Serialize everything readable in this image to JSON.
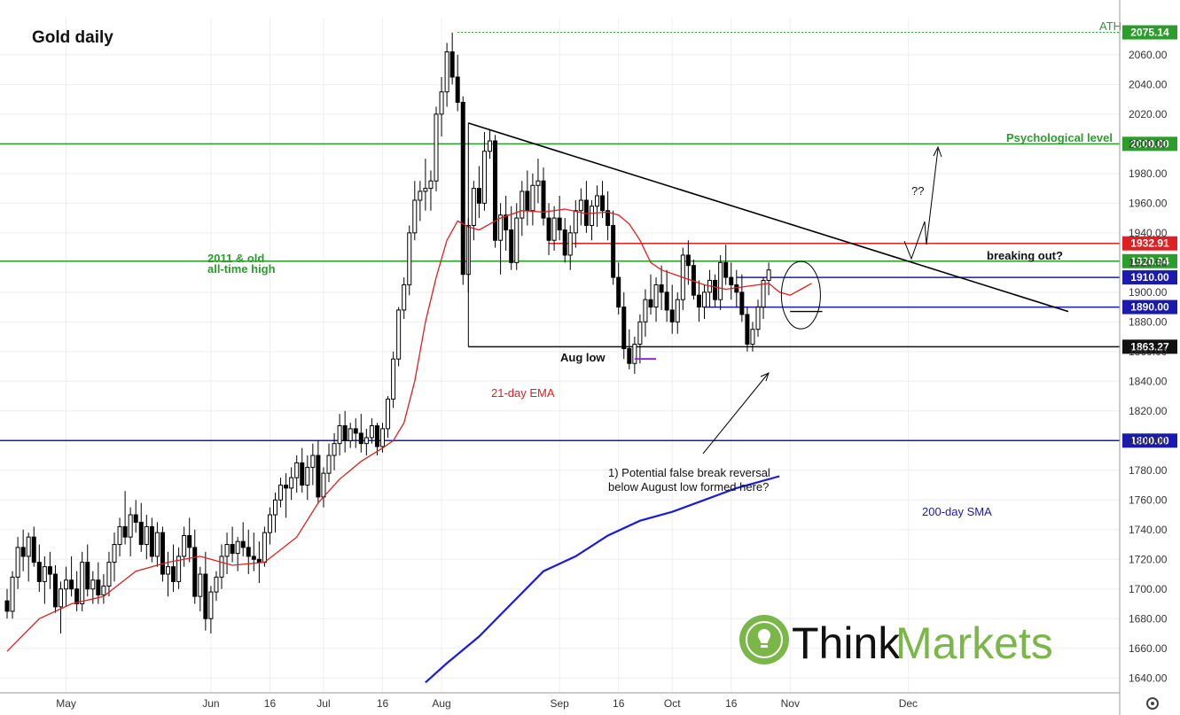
{
  "chart_data": {
    "type": "candlestick",
    "title": "Gold daily",
    "ylim": [
      1630,
      2085
    ],
    "y_ticks": [
      1640,
      1660,
      1680,
      1700,
      1720,
      1740,
      1760,
      1780,
      1800,
      1820,
      1840,
      1860,
      1880,
      1900,
      1920,
      1940,
      1960,
      1980,
      2000,
      2020,
      2040,
      2060
    ],
    "x_ticks": [
      {
        "label": "May",
        "i": 11
      },
      {
        "label": "Jun",
        "i": 38
      },
      {
        "label": "16",
        "i": 49
      },
      {
        "label": "Jul",
        "i": 59
      },
      {
        "label": "16",
        "i": 70
      },
      {
        "label": "Aug",
        "i": 81
      },
      {
        "label": "Sep",
        "i": 103
      },
      {
        "label": "16",
        "i": 114
      },
      {
        "label": "Oct",
        "i": 124
      },
      {
        "label": "16",
        "i": 135
      },
      {
        "label": "Nov",
        "i": 146
      },
      {
        "label": "Dec",
        "i": 168
      }
    ],
    "ohlc": [
      [
        1692,
        1700,
        1680,
        1685
      ],
      [
        1685,
        1712,
        1680,
        1708
      ],
      [
        1708,
        1735,
        1700,
        1728
      ],
      [
        1728,
        1740,
        1712,
        1722
      ],
      [
        1722,
        1738,
        1705,
        1735
      ],
      [
        1735,
        1742,
        1715,
        1718
      ],
      [
        1718,
        1730,
        1698,
        1705
      ],
      [
        1705,
        1722,
        1690,
        1715
      ],
      [
        1715,
        1725,
        1700,
        1710
      ],
      [
        1710,
        1716,
        1684,
        1688
      ],
      [
        1688,
        1705,
        1670,
        1700
      ],
      [
        1700,
        1715,
        1688,
        1706
      ],
      [
        1706,
        1722,
        1695,
        1700
      ],
      [
        1700,
        1712,
        1685,
        1690
      ],
      [
        1690,
        1725,
        1685,
        1718
      ],
      [
        1718,
        1730,
        1695,
        1700
      ],
      [
        1700,
        1712,
        1690,
        1706
      ],
      [
        1706,
        1718,
        1690,
        1696
      ],
      [
        1696,
        1710,
        1690,
        1702
      ],
      [
        1702,
        1725,
        1695,
        1718
      ],
      [
        1718,
        1738,
        1705,
        1730
      ],
      [
        1730,
        1748,
        1722,
        1742
      ],
      [
        1742,
        1766,
        1730,
        1735
      ],
      [
        1735,
        1755,
        1722,
        1750
      ],
      [
        1750,
        1760,
        1738,
        1745
      ],
      [
        1745,
        1758,
        1725,
        1730
      ],
      [
        1730,
        1750,
        1720,
        1742
      ],
      [
        1742,
        1748,
        1718,
        1722
      ],
      [
        1722,
        1745,
        1715,
        1738
      ],
      [
        1738,
        1742,
        1705,
        1710
      ],
      [
        1710,
        1725,
        1695,
        1715
      ],
      [
        1715,
        1730,
        1698,
        1705
      ],
      [
        1705,
        1728,
        1700,
        1722
      ],
      [
        1722,
        1742,
        1715,
        1736
      ],
      [
        1736,
        1748,
        1718,
        1728
      ],
      [
        1728,
        1740,
        1690,
        1695
      ],
      [
        1695,
        1715,
        1685,
        1710
      ],
      [
        1710,
        1725,
        1672,
        1680
      ],
      [
        1680,
        1702,
        1670,
        1698
      ],
      [
        1698,
        1712,
        1692,
        1708
      ],
      [
        1708,
        1730,
        1700,
        1722
      ],
      [
        1722,
        1738,
        1710,
        1730
      ],
      [
        1730,
        1742,
        1718,
        1724
      ],
      [
        1724,
        1735,
        1712,
        1732
      ],
      [
        1732,
        1745,
        1722,
        1728
      ],
      [
        1728,
        1740,
        1710,
        1722
      ],
      [
        1722,
        1738,
        1712,
        1720
      ],
      [
        1720,
        1732,
        1704,
        1718
      ],
      [
        1718,
        1742,
        1715,
        1738
      ],
      [
        1738,
        1755,
        1730,
        1750
      ],
      [
        1750,
        1765,
        1738,
        1760
      ],
      [
        1760,
        1775,
        1755,
        1770
      ],
      [
        1770,
        1778,
        1748,
        1768
      ],
      [
        1768,
        1782,
        1760,
        1775
      ],
      [
        1775,
        1790,
        1765,
        1785
      ],
      [
        1785,
        1795,
        1765,
        1770
      ],
      [
        1770,
        1790,
        1760,
        1782
      ],
      [
        1782,
        1798,
        1770,
        1790
      ],
      [
        1790,
        1800,
        1758,
        1762
      ],
      [
        1762,
        1782,
        1755,
        1778
      ],
      [
        1778,
        1798,
        1772,
        1790
      ],
      [
        1790,
        1805,
        1780,
        1798
      ],
      [
        1798,
        1818,
        1790,
        1810
      ],
      [
        1810,
        1820,
        1792,
        1800
      ],
      [
        1800,
        1812,
        1795,
        1808
      ],
      [
        1808,
        1815,
        1795,
        1805
      ],
      [
        1805,
        1818,
        1792,
        1798
      ],
      [
        1798,
        1808,
        1790,
        1802
      ],
      [
        1802,
        1815,
        1798,
        1810
      ],
      [
        1810,
        1812,
        1790,
        1796
      ],
      [
        1796,
        1812,
        1792,
        1808
      ],
      [
        1808,
        1830,
        1802,
        1828
      ],
      [
        1828,
        1860,
        1822,
        1855
      ],
      [
        1855,
        1890,
        1850,
        1888
      ],
      [
        1888,
        1910,
        1882,
        1905
      ],
      [
        1905,
        1945,
        1898,
        1940
      ],
      [
        1940,
        1975,
        1935,
        1962
      ],
      [
        1962,
        1975,
        1948,
        1968
      ],
      [
        1968,
        1990,
        1955,
        1970
      ],
      [
        1970,
        1982,
        1955,
        1975
      ],
      [
        1975,
        2025,
        1968,
        2020
      ],
      [
        2020,
        2045,
        2005,
        2035
      ],
      [
        2035,
        2068,
        2025,
        2062
      ],
      [
        2062,
        2075,
        2040,
        2045
      ],
      [
        2045,
        2060,
        2022,
        2028
      ],
      [
        2028,
        2032,
        1905,
        1912
      ],
      [
        1912,
        1950,
        1900,
        1945
      ],
      [
        1945,
        1975,
        1935,
        1970
      ],
      [
        1970,
        1985,
        1950,
        1960
      ],
      [
        1960,
        2008,
        1955,
        1995
      ],
      [
        1995,
        2010,
        1990,
        2002
      ],
      [
        2002,
        2006,
        1930,
        1935
      ],
      [
        1935,
        1960,
        1912,
        1952
      ],
      [
        1952,
        1965,
        1928,
        1942
      ],
      [
        1942,
        1958,
        1915,
        1920
      ],
      [
        1920,
        1960,
        1915,
        1950
      ],
      [
        1950,
        1975,
        1938,
        1968
      ],
      [
        1968,
        1982,
        1945,
        1955
      ],
      [
        1955,
        1980,
        1945,
        1972
      ],
      [
        1972,
        1990,
        1960,
        1975
      ],
      [
        1975,
        1984,
        1945,
        1950
      ],
      [
        1950,
        1960,
        1925,
        1935
      ],
      [
        1935,
        1958,
        1928,
        1950
      ],
      [
        1950,
        1965,
        1935,
        1942
      ],
      [
        1942,
        1950,
        1920,
        1925
      ],
      [
        1925,
        1945,
        1915,
        1940
      ],
      [
        1940,
        1962,
        1930,
        1955
      ],
      [
        1955,
        1970,
        1945,
        1962
      ],
      [
        1962,
        1975,
        1940,
        1945
      ],
      [
        1945,
        1962,
        1935,
        1958
      ],
      [
        1958,
        1972,
        1944,
        1965
      ],
      [
        1965,
        1975,
        1950,
        1955
      ],
      [
        1955,
        1968,
        1935,
        1945
      ],
      [
        1945,
        1955,
        1905,
        1910
      ],
      [
        1910,
        1920,
        1885,
        1890
      ],
      [
        1890,
        1900,
        1855,
        1862
      ],
      [
        1862,
        1875,
        1848,
        1852
      ],
      [
        1852,
        1870,
        1845,
        1865
      ],
      [
        1865,
        1885,
        1852,
        1880
      ],
      [
        1880,
        1902,
        1870,
        1895
      ],
      [
        1895,
        1912,
        1885,
        1890
      ],
      [
        1890,
        1910,
        1880,
        1905
      ],
      [
        1905,
        1918,
        1888,
        1900
      ],
      [
        1900,
        1915,
        1880,
        1888
      ],
      [
        1888,
        1905,
        1872,
        1880
      ],
      [
        1880,
        1900,
        1872,
        1895
      ],
      [
        1895,
        1930,
        1888,
        1925
      ],
      [
        1925,
        1935,
        1905,
        1918
      ],
      [
        1918,
        1922,
        1895,
        1898
      ],
      [
        1898,
        1908,
        1880,
        1890
      ],
      [
        1890,
        1905,
        1882,
        1900
      ],
      [
        1900,
        1915,
        1890,
        1908
      ],
      [
        1908,
        1912,
        1890,
        1895
      ],
      [
        1895,
        1925,
        1888,
        1920
      ],
      [
        1920,
        1932,
        1905,
        1910
      ],
      [
        1910,
        1920,
        1895,
        1905
      ],
      [
        1905,
        1915,
        1890,
        1900
      ],
      [
        1900,
        1912,
        1880,
        1885
      ],
      [
        1885,
        1890,
        1860,
        1865
      ],
      [
        1865,
        1880,
        1860,
        1875
      ],
      [
        1875,
        1895,
        1870,
        1890
      ],
      [
        1890,
        1910,
        1882,
        1908
      ],
      [
        1908,
        1920,
        1898,
        1915
      ]
    ],
    "ema21": [
      [
        0,
        1658
      ],
      [
        6,
        1680
      ],
      [
        12,
        1690
      ],
      [
        18,
        1695
      ],
      [
        24,
        1712
      ],
      [
        30,
        1718
      ],
      [
        36,
        1722
      ],
      [
        42,
        1716
      ],
      [
        48,
        1718
      ],
      [
        54,
        1735
      ],
      [
        58,
        1758
      ],
      [
        62,
        1774
      ],
      [
        66,
        1786
      ],
      [
        70,
        1795
      ],
      [
        72,
        1800
      ],
      [
        74,
        1812
      ],
      [
        76,
        1840
      ],
      [
        78,
        1880
      ],
      [
        80,
        1910
      ],
      [
        82,
        1935
      ],
      [
        84,
        1948
      ],
      [
        86,
        1944
      ],
      [
        88,
        1942
      ],
      [
        92,
        1950
      ],
      [
        96,
        1955
      ],
      [
        100,
        1954
      ],
      [
        104,
        1956
      ],
      [
        108,
        1953
      ],
      [
        112,
        1954
      ],
      [
        114,
        1952
      ],
      [
        116,
        1946
      ],
      [
        118,
        1935
      ],
      [
        120,
        1920
      ],
      [
        122,
        1915
      ],
      [
        126,
        1910
      ],
      [
        130,
        1905
      ],
      [
        134,
        1902
      ],
      [
        138,
        1904
      ],
      [
        142,
        1906
      ],
      [
        144,
        1900
      ],
      [
        146,
        1898
      ],
      [
        148,
        1902
      ],
      [
        150,
        1906
      ]
    ],
    "sma200": [
      [
        78,
        1637
      ],
      [
        82,
        1650
      ],
      [
        88,
        1668
      ],
      [
        94,
        1690
      ],
      [
        100,
        1712
      ],
      [
        106,
        1722
      ],
      [
        112,
        1736
      ],
      [
        118,
        1746
      ],
      [
        124,
        1752
      ],
      [
        130,
        1760
      ],
      [
        136,
        1768
      ],
      [
        144,
        1776
      ]
    ],
    "levels": [
      {
        "price": 2075.14,
        "label": "2075.14",
        "color": "#2a9d2a",
        "style": "dotted",
        "note": "ATH"
      },
      {
        "price": 2000.0,
        "label": "2000.00",
        "color": "#2a9d2a",
        "style": "solid",
        "note": "Psychological level"
      },
      {
        "price": 1932.91,
        "label": "1932.91",
        "color": "#e02020",
        "style": "solid",
        "note": ""
      },
      {
        "price": 1920.94,
        "label": "1920.94",
        "color": "#2a9d2a",
        "style": "solid",
        "note": "2011 & old all-time high"
      },
      {
        "price": 1910.0,
        "label": "1910.00",
        "color": "#1a1ab0",
        "style": "solid",
        "note": ""
      },
      {
        "price": 1890.0,
        "label": "1890.00",
        "color": "#1a1ab0",
        "style": "solid",
        "note": ""
      },
      {
        "price": 1863.27,
        "label": "1863.27",
        "color": "#111111",
        "style": "solid",
        "note": "Aug low"
      },
      {
        "price": 1800.0,
        "label": "1800.00",
        "color": "#1a1ab0",
        "style": "solid",
        "note": ""
      }
    ],
    "annotations": {
      "ath": "ATH",
      "psych": "Psychological level",
      "old_high_1": "2011 & old",
      "old_high_2": "all-time high",
      "aug_low": "Aug low",
      "ema_label": "21-day EMA",
      "sma_label": "200-day SMA",
      "breaking": "breaking out?",
      "question": "??",
      "reversal_1": "1) Potential false break reversal",
      "reversal_2": "below August low formed here?"
    },
    "logo": "ThinkMarkets"
  },
  "colors": {
    "up": "#ffffff",
    "down": "#000000",
    "ema": "#e02020",
    "sma": "#1a1ae0",
    "grid": "#eeeeee"
  }
}
